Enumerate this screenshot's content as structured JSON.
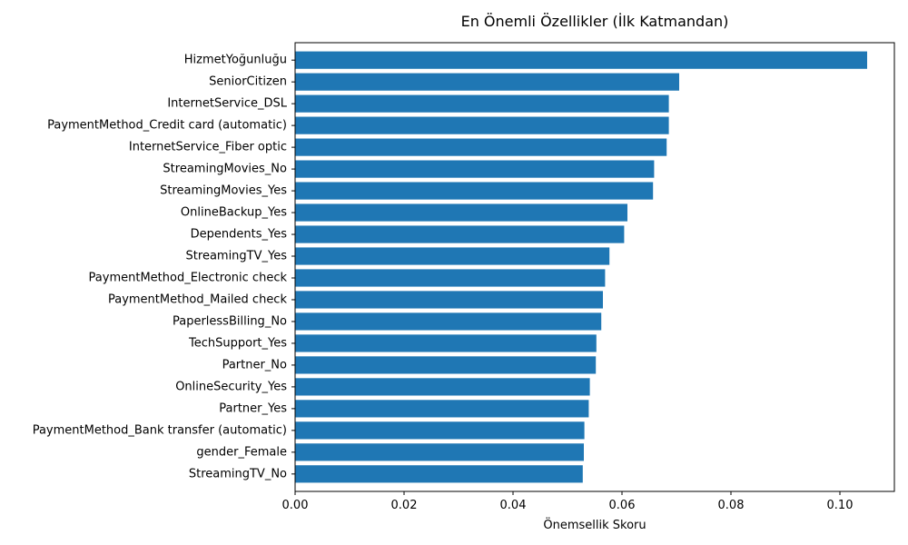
{
  "chart_data": {
    "type": "bar",
    "orientation": "horizontal",
    "title": "En Önemli Özellikler (İlk Katmandan)",
    "xlabel": "Önemsellik Skoru",
    "ylabel": "",
    "xlim": [
      0,
      0.11
    ],
    "xticks": [
      0.0,
      0.02,
      0.04,
      0.06,
      0.08,
      0.1
    ],
    "xtick_labels": [
      "0.00",
      "0.02",
      "0.04",
      "0.06",
      "0.08",
      "0.10"
    ],
    "bar_color": "#1f77b4",
    "categories": [
      "HizmetYoğunluğu",
      "SeniorCitizen",
      "InternetService_DSL",
      "PaymentMethod_Credit card (automatic)",
      "InternetService_Fiber optic",
      "StreamingMovies_No",
      "StreamingMovies_Yes",
      "OnlineBackup_Yes",
      "Dependents_Yes",
      "StreamingTV_Yes",
      "PaymentMethod_Electronic check",
      "PaymentMethod_Mailed check",
      "PaperlessBilling_No",
      "TechSupport_Yes",
      "Partner_No",
      "OnlineSecurity_Yes",
      "Partner_Yes",
      "PaymentMethod_Bank transfer (automatic)",
      "gender_Female",
      "StreamingTV_No"
    ],
    "values": [
      0.105,
      0.0705,
      0.0686,
      0.0686,
      0.0682,
      0.0659,
      0.0657,
      0.061,
      0.0604,
      0.0577,
      0.0569,
      0.0565,
      0.0562,
      0.0553,
      0.0552,
      0.0541,
      0.0539,
      0.0531,
      0.053,
      0.0528
    ]
  }
}
